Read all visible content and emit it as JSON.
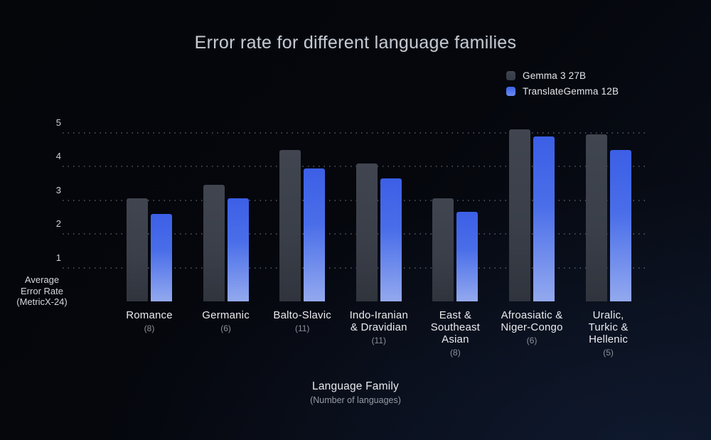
{
  "chart_data": {
    "type": "bar",
    "title": "Error rate for different language families",
    "categories": [
      "Romance",
      "Germanic",
      "Balto-Slavic",
      "Indo-Iranian & Dravidian",
      "East & Southeast Asian",
      "Afroasiatic & Niger-Congo",
      "Uralic, Turkic & Hellenic"
    ],
    "category_display": [
      "Romance",
      "Germanic",
      "Balto-Slavic",
      "Indo-Iranian\n& Dravidian",
      "East &\nSoutheast\nAsian",
      "Afroasiatic &\nNiger-Congo",
      "Uralic,\nTurkic &\nHellenic"
    ],
    "category_counts": [
      "(8)",
      "(6)",
      "(11)",
      "(11)",
      "(8)",
      "(6)",
      "(5)"
    ],
    "series": [
      {
        "name": "Gemma 3 27B",
        "color": "#3b414b",
        "values": [
          3.05,
          3.45,
          4.5,
          4.1,
          3.05,
          5.1,
          4.95
        ]
      },
      {
        "name": "TranslateGemma 12B",
        "color": "#3d63ea",
        "values": [
          2.6,
          3.05,
          3.95,
          3.65,
          2.65,
          4.9,
          4.5
        ]
      }
    ],
    "ylabel": "Average\nError Rate\n(MetricX-24)",
    "xlabel": "Language Family",
    "xlabel_sub": "(Number of languages)",
    "yticks": [
      1,
      2,
      3,
      4,
      5
    ],
    "ylim": [
      0,
      5.2
    ],
    "grid": "dotted horizontal lines",
    "legend_position": "top-right",
    "background": "#05070d"
  }
}
